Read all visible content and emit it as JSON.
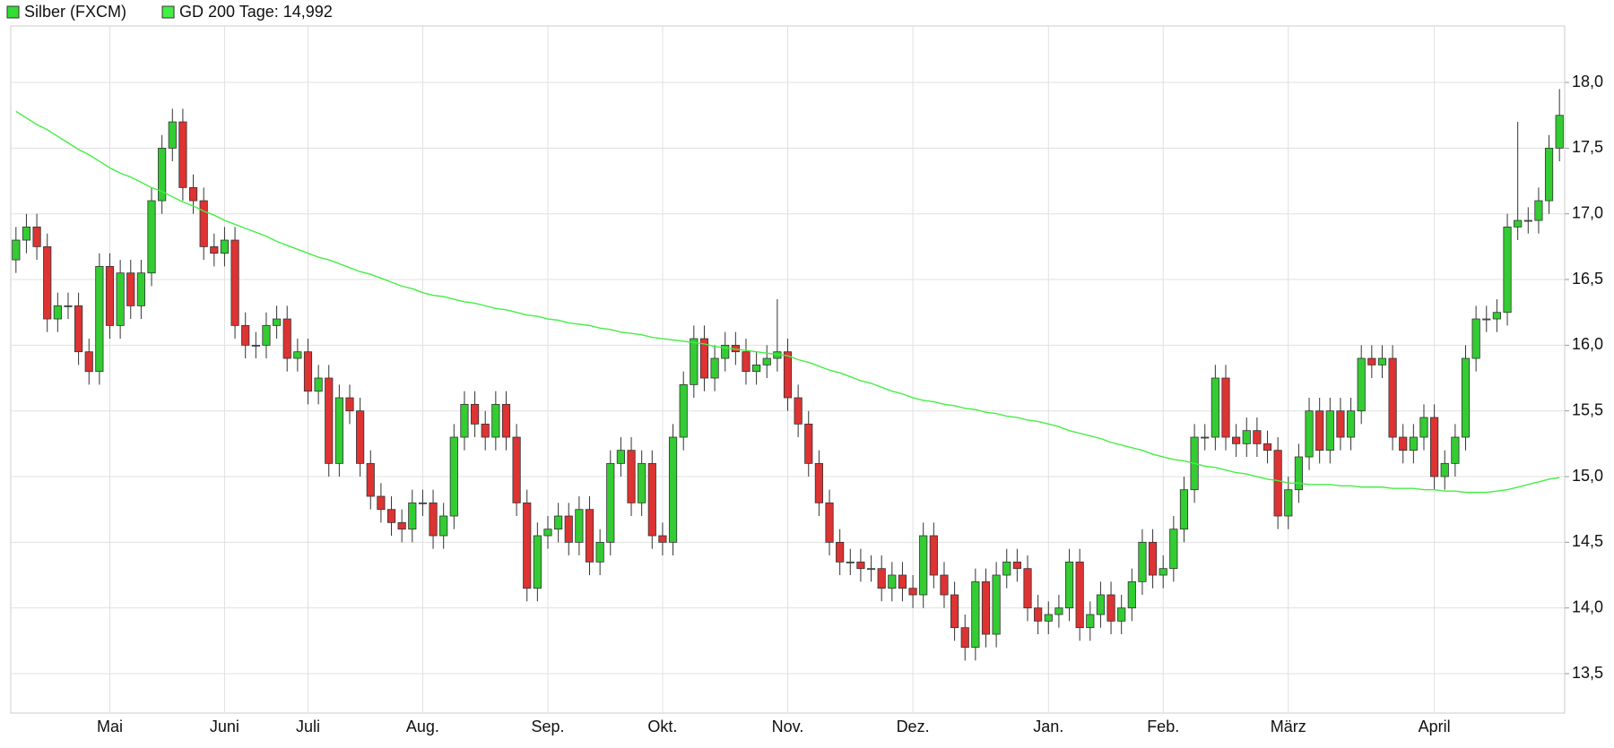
{
  "chart_data": {
    "type": "candlestick",
    "categories": [
      null,
      null,
      null,
      null,
      null,
      null,
      null,
      null,
      null,
      "Mai",
      null,
      null,
      null,
      null,
      null,
      null,
      null,
      null,
      null,
      null,
      "Juni",
      null,
      null,
      null,
      null,
      null,
      null,
      null,
      "Juli",
      null,
      null,
      null,
      null,
      null,
      null,
      null,
      null,
      null,
      null,
      "Aug.",
      null,
      null,
      null,
      null,
      null,
      null,
      null,
      null,
      null,
      null,
      null,
      "Sep.",
      null,
      null,
      null,
      null,
      null,
      null,
      null,
      null,
      null,
      null,
      "Okt.",
      null,
      null,
      null,
      null,
      null,
      null,
      null,
      null,
      null,
      null,
      null,
      "Nov.",
      null,
      null,
      null,
      null,
      null,
      null,
      null,
      null,
      null,
      null,
      null,
      "Dez.",
      null,
      null,
      null,
      null,
      null,
      null,
      null,
      null,
      null,
      null,
      null,
      null,
      "Jan.",
      null,
      null,
      null,
      null,
      null,
      null,
      null,
      null,
      null,
      null,
      "Feb.",
      null,
      null,
      null,
      null,
      null,
      null,
      null,
      null,
      null,
      null,
      null,
      "März",
      null,
      null,
      null,
      null,
      null,
      null,
      null,
      null,
      null,
      null,
      null,
      null,
      null,
      "April",
      null,
      null,
      null,
      null,
      null,
      null,
      null,
      null,
      null,
      null,
      null,
      null
    ],
    "series": [
      {
        "name": "Silber (FXCM)",
        "color": "#33dd33",
        "up_color": "#33cc33",
        "down_color": "#dd3333",
        "open": [
          16.65,
          16.8,
          16.9,
          16.75,
          16.2,
          16.3,
          16.3,
          15.95,
          15.8,
          16.6,
          16.15,
          16.55,
          16.3,
          16.55,
          17.1,
          17.5,
          17.7,
          17.2,
          17.1,
          16.75,
          16.7,
          16.8,
          16.15,
          16.0,
          16.0,
          16.15,
          16.2,
          15.9,
          15.95,
          15.65,
          15.75,
          15.1,
          15.6,
          15.5,
          15.1,
          14.85,
          14.75,
          14.65,
          14.6,
          14.8,
          14.8,
          14.55,
          14.7,
          15.3,
          15.55,
          15.4,
          15.3,
          15.55,
          15.3,
          14.8,
          14.15,
          14.55,
          14.6,
          14.7,
          14.5,
          14.75,
          14.35,
          14.5,
          15.1,
          15.2,
          14.8,
          15.1,
          14.55,
          14.5,
          15.3,
          15.7,
          16.05,
          15.75,
          15.9,
          16.0,
          15.95,
          15.8,
          15.85,
          15.9,
          15.95,
          15.6,
          15.4,
          15.1,
          14.8,
          14.5,
          14.35,
          14.35,
          14.3,
          14.3,
          14.15,
          14.25,
          14.15,
          14.1,
          14.55,
          14.25,
          14.1,
          13.85,
          13.7,
          14.2,
          13.8,
          14.25,
          14.35,
          14.3,
          14.0,
          13.9,
          13.95,
          14.0,
          14.35,
          13.85,
          13.95,
          14.1,
          13.9,
          14.0,
          14.2,
          14.5,
          14.25,
          14.3,
          14.6,
          14.9,
          15.3,
          15.3,
          15.75,
          15.3,
          15.25,
          15.35,
          15.25,
          15.2,
          14.7,
          14.9,
          15.15,
          15.5,
          15.2,
          15.5,
          15.3,
          15.5,
          15.9,
          15.85,
          15.9,
          15.3,
          15.2,
          15.3,
          15.45,
          15.0,
          15.1,
          15.3,
          15.9,
          16.2,
          16.2,
          16.25,
          16.9,
          16.95,
          16.95,
          17.1,
          17.5
        ],
        "high": [
          16.9,
          17.0,
          17.0,
          16.85,
          16.4,
          16.4,
          16.4,
          16.05,
          16.7,
          16.7,
          16.65,
          16.65,
          16.65,
          17.2,
          17.6,
          17.8,
          17.8,
          17.3,
          17.2,
          16.85,
          16.9,
          16.9,
          16.25,
          16.1,
          16.25,
          16.3,
          16.3,
          16.05,
          16.05,
          15.85,
          15.85,
          15.7,
          15.7,
          15.6,
          15.2,
          14.95,
          14.85,
          14.75,
          14.9,
          14.9,
          14.9,
          14.8,
          15.4,
          15.65,
          15.65,
          15.5,
          15.65,
          15.65,
          15.4,
          14.9,
          14.65,
          14.7,
          14.8,
          14.8,
          14.85,
          14.85,
          14.6,
          15.2,
          15.3,
          15.3,
          15.2,
          15.2,
          14.65,
          15.4,
          15.8,
          16.15,
          16.15,
          16.0,
          16.1,
          16.1,
          16.05,
          15.95,
          16.0,
          16.35,
          16.05,
          15.7,
          15.5,
          15.2,
          14.9,
          14.6,
          14.45,
          14.45,
          14.4,
          14.4,
          14.35,
          14.35,
          14.25,
          14.65,
          14.65,
          14.35,
          14.2,
          13.95,
          14.3,
          14.3,
          14.35,
          14.45,
          14.45,
          14.4,
          14.1,
          14.05,
          14.1,
          14.45,
          14.45,
          14.05,
          14.2,
          14.2,
          14.1,
          14.3,
          14.6,
          14.6,
          14.4,
          14.7,
          15.0,
          15.4,
          15.4,
          15.85,
          15.85,
          15.4,
          15.45,
          15.45,
          15.35,
          15.3,
          15.0,
          15.25,
          15.6,
          15.6,
          15.6,
          15.6,
          15.6,
          16.0,
          16.0,
          16.0,
          16.0,
          15.4,
          15.4,
          15.55,
          15.55,
          15.2,
          15.4,
          16.0,
          16.3,
          16.3,
          16.35,
          17.0,
          17.7,
          17.05,
          17.2,
          17.6,
          17.95
        ],
        "low": [
          16.55,
          16.7,
          16.65,
          16.1,
          16.1,
          16.2,
          15.85,
          15.7,
          15.7,
          16.05,
          16.05,
          16.2,
          16.2,
          16.45,
          17.0,
          17.4,
          17.1,
          17.0,
          16.65,
          16.6,
          16.6,
          16.05,
          15.9,
          15.9,
          15.9,
          16.05,
          15.8,
          15.8,
          15.55,
          15.55,
          15.0,
          15.0,
          15.4,
          15.0,
          14.75,
          14.65,
          14.55,
          14.5,
          14.5,
          14.7,
          14.45,
          14.45,
          14.6,
          15.2,
          15.3,
          15.2,
          15.2,
          15.2,
          14.7,
          14.05,
          14.05,
          14.45,
          14.5,
          14.4,
          14.4,
          14.25,
          14.25,
          14.4,
          15.0,
          14.7,
          14.7,
          14.45,
          14.4,
          14.4,
          15.2,
          15.6,
          15.65,
          15.65,
          15.8,
          15.85,
          15.7,
          15.7,
          15.75,
          15.8,
          15.5,
          15.3,
          15.0,
          14.7,
          14.4,
          14.25,
          14.25,
          14.2,
          14.2,
          14.05,
          14.05,
          14.05,
          14.0,
          14.0,
          14.15,
          14.0,
          13.75,
          13.6,
          13.6,
          13.7,
          13.7,
          14.15,
          14.2,
          13.9,
          13.8,
          13.8,
          13.85,
          13.9,
          13.75,
          13.75,
          13.85,
          13.8,
          13.8,
          13.9,
          14.1,
          14.15,
          14.15,
          14.2,
          14.5,
          14.8,
          15.2,
          15.2,
          15.2,
          15.15,
          15.15,
          15.15,
          15.1,
          14.6,
          14.6,
          14.8,
          15.05,
          15.1,
          15.1,
          15.2,
          15.2,
          15.4,
          15.75,
          15.75,
          15.2,
          15.1,
          15.1,
          15.2,
          14.9,
          14.9,
          15.0,
          15.2,
          15.8,
          16.1,
          16.1,
          16.15,
          16.8,
          16.85,
          16.85,
          17.0,
          17.4
        ],
        "close": [
          16.8,
          16.9,
          16.75,
          16.2,
          16.3,
          16.3,
          15.95,
          15.8,
          16.6,
          16.15,
          16.55,
          16.3,
          16.55,
          17.1,
          17.5,
          17.7,
          17.2,
          17.1,
          16.75,
          16.7,
          16.8,
          16.15,
          16.0,
          16.0,
          16.15,
          16.2,
          15.9,
          15.95,
          15.65,
          15.75,
          15.1,
          15.6,
          15.5,
          15.1,
          14.85,
          14.75,
          14.65,
          14.6,
          14.8,
          14.8,
          14.55,
          14.7,
          15.3,
          15.55,
          15.4,
          15.3,
          15.55,
          15.3,
          14.8,
          14.15,
          14.55,
          14.6,
          14.7,
          14.5,
          14.75,
          14.35,
          14.5,
          15.1,
          15.2,
          14.8,
          15.1,
          14.55,
          14.5,
          15.3,
          15.7,
          16.05,
          15.75,
          15.9,
          16.0,
          15.95,
          15.8,
          15.85,
          15.9,
          15.95,
          15.6,
          15.4,
          15.1,
          14.8,
          14.5,
          14.35,
          14.35,
          14.3,
          14.3,
          14.15,
          14.25,
          14.15,
          14.1,
          14.55,
          14.25,
          14.1,
          13.85,
          13.7,
          14.2,
          13.8,
          14.25,
          14.35,
          14.3,
          14.0,
          13.9,
          13.95,
          14.0,
          14.35,
          13.85,
          13.95,
          14.1,
          13.9,
          14.0,
          14.2,
          14.5,
          14.25,
          14.3,
          14.6,
          14.9,
          15.3,
          15.3,
          15.75,
          15.3,
          15.25,
          15.35,
          15.25,
          15.2,
          14.7,
          14.9,
          15.15,
          15.5,
          15.2,
          15.5,
          15.3,
          15.5,
          15.9,
          15.85,
          15.9,
          15.3,
          15.2,
          15.3,
          15.45,
          15.0,
          15.1,
          15.3,
          15.9,
          16.2,
          16.2,
          16.25,
          16.9,
          16.95,
          16.95,
          17.1,
          17.5,
          17.75
        ]
      },
      {
        "name": "GD 200 Tage: 14,992",
        "type": "line",
        "color": "#44ee44",
        "values": [
          17.78,
          17.73,
          17.68,
          17.64,
          17.59,
          17.54,
          17.49,
          17.45,
          17.4,
          17.35,
          17.31,
          17.28,
          17.24,
          17.2,
          17.17,
          17.13,
          17.09,
          17.06,
          17.02,
          16.99,
          16.95,
          16.92,
          16.89,
          16.86,
          16.83,
          16.79,
          16.76,
          16.73,
          16.7,
          16.67,
          16.65,
          16.62,
          16.59,
          16.56,
          16.54,
          16.51,
          16.48,
          16.45,
          16.43,
          16.4,
          16.38,
          16.37,
          16.35,
          16.33,
          16.32,
          16.3,
          16.28,
          16.27,
          16.25,
          16.23,
          16.22,
          16.2,
          16.19,
          16.17,
          16.16,
          16.15,
          16.13,
          16.12,
          16.1,
          16.09,
          16.08,
          16.06,
          16.05,
          16.04,
          16.03,
          16.02,
          16.01,
          15.99,
          15.98,
          15.97,
          15.96,
          15.95,
          15.94,
          15.93,
          15.92,
          15.89,
          15.87,
          15.84,
          15.81,
          15.79,
          15.76,
          15.73,
          15.71,
          15.68,
          15.65,
          15.63,
          15.6,
          15.58,
          15.57,
          15.55,
          15.54,
          15.52,
          15.51,
          15.49,
          15.48,
          15.46,
          15.45,
          15.43,
          15.42,
          15.4,
          15.38,
          15.35,
          15.33,
          15.31,
          15.29,
          15.26,
          15.24,
          15.22,
          15.2,
          15.17,
          15.15,
          15.13,
          15.12,
          15.1,
          15.08,
          15.07,
          15.05,
          15.03,
          15.02,
          15.0,
          14.98,
          14.97,
          14.95,
          14.95,
          14.94,
          14.94,
          14.94,
          14.93,
          14.93,
          14.92,
          14.92,
          14.92,
          14.91,
          14.91,
          14.91,
          14.9,
          14.9,
          14.89,
          14.89,
          14.88,
          14.88,
          14.88,
          14.89,
          14.9,
          14.92,
          14.94,
          14.96,
          14.98,
          14.992
        ]
      }
    ],
    "ylim": [
      13.2,
      18.43
    ],
    "yticks": [
      {
        "value": 13.5,
        "label": "13,5"
      },
      {
        "value": 14.0,
        "label": "14,0"
      },
      {
        "value": 14.5,
        "label": "14,5"
      },
      {
        "value": 15.0,
        "label": "15,0"
      },
      {
        "value": 15.5,
        "label": "15,5"
      },
      {
        "value": 16.0,
        "label": "16,0"
      },
      {
        "value": 16.5,
        "label": "16,5"
      },
      {
        "value": 17.0,
        "label": "17,0"
      },
      {
        "value": 17.5,
        "label": "17,5"
      },
      {
        "value": 18.0,
        "label": "18,0"
      }
    ],
    "grid": true
  }
}
